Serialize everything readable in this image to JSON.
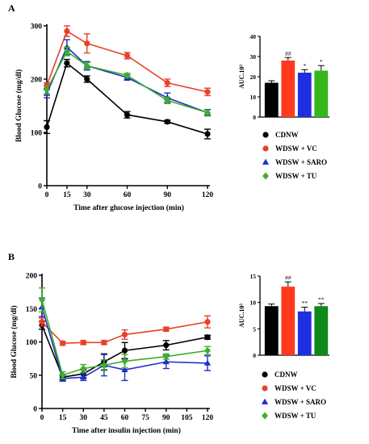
{
  "panels": [
    {
      "letter": "A"
    },
    {
      "letter": "B"
    }
  ],
  "legend": [
    {
      "label": "CDNW",
      "color": "#000000",
      "marker": "circle"
    },
    {
      "label": "WDSW + VC",
      "color": "#e8402a",
      "marker": "circle"
    },
    {
      "label": "WDSW + SARO",
      "color": "#1f2fc8",
      "marker": "triangle"
    },
    {
      "label": "WDSW + TU",
      "color": "#3fae2a",
      "marker": "diamond"
    }
  ],
  "chart_data": [
    {
      "id": "A-line",
      "type": "line",
      "xlabel": "Time after glucose injection (min)",
      "ylabel": "Blood Glucose (mg/dl)",
      "xlim": [
        0,
        120
      ],
      "ylim": [
        0,
        300
      ],
      "x_ticks": [
        "0",
        "15",
        "30",
        "60",
        "90",
        "120"
      ],
      "y_ticks": [
        "0",
        "100",
        "200",
        "300"
      ],
      "x": [
        0,
        15,
        30,
        60,
        90,
        120
      ],
      "series": [
        {
          "name": "CDNW",
          "color": "#000000",
          "marker": "circle",
          "values": [
            110,
            230,
            200,
            133,
            120,
            97
          ],
          "errors": [
            12,
            7,
            6,
            6,
            3,
            9
          ]
        },
        {
          "name": "WDSW + VC",
          "color": "#e8402a",
          "marker": "circle",
          "values": [
            188,
            290,
            267,
            244,
            193,
            176
          ],
          "errors": [
            5,
            10,
            18,
            6,
            7,
            7
          ]
        },
        {
          "name": "WDSW + SARO",
          "color": "#1f2fc8",
          "marker": "triangle",
          "values": [
            173,
            260,
            225,
            203,
            165,
            137
          ],
          "errors": [
            8,
            14,
            8,
            5,
            9,
            6
          ]
        },
        {
          "name": "WDSW + TU",
          "color": "#3fae2a",
          "marker": "diamond",
          "values": [
            180,
            252,
            225,
            207,
            160,
            137
          ],
          "errors": [
            8,
            8,
            6,
            4,
            6,
            5
          ]
        }
      ]
    },
    {
      "id": "A-bar",
      "type": "bar",
      "ylabel": "AUC.10³",
      "ylim": [
        0,
        40
      ],
      "y_ticks": [
        "0",
        "10",
        "20",
        "30",
        "40"
      ],
      "categories": [
        "CDNW",
        "WDSW + VC",
        "WDSW + SARO",
        "WDSW + TU"
      ],
      "values": [
        17,
        28,
        22,
        23
      ],
      "errors": [
        1,
        1.5,
        1.5,
        2.5
      ],
      "colors": [
        "#000000",
        "#ff3a1f",
        "#1f2fe0",
        "#35b71c"
      ],
      "significance": [
        "",
        "##",
        "*",
        "*"
      ]
    },
    {
      "id": "B-line",
      "type": "line",
      "xlabel": "Time after insulin injection (min)",
      "ylabel": "Blood Glucose (mg/dl)",
      "xlim": [
        0,
        120
      ],
      "ylim": [
        0,
        200
      ],
      "x_ticks": [
        "0",
        "15",
        "30",
        "45",
        "60",
        "75",
        "90",
        "105",
        "120"
      ],
      "y_ticks": [
        "0",
        "50",
        "100",
        "150",
        "200"
      ],
      "x": [
        0,
        15,
        30,
        45,
        60,
        90,
        120
      ],
      "series": [
        {
          "name": "CDNW",
          "color": "#000000",
          "marker": "circle",
          "values": [
            125,
            47,
            52,
            70,
            87,
            95,
            107
          ],
          "errors": [
            6,
            4,
            6,
            12,
            12,
            7,
            3
          ]
        },
        {
          "name": "WDSW + VC",
          "color": "#e8402a",
          "marker": "circle",
          "values": [
            130,
            98,
            99,
            99,
            111,
            119,
            130
          ],
          "errors": [
            6,
            3,
            3,
            3,
            7,
            3,
            9
          ]
        },
        {
          "name": "WDSW + SARO",
          "color": "#1f2fc8",
          "marker": "triangle",
          "values": [
            152,
            45,
            47,
            65,
            58,
            70,
            68
          ],
          "errors": [
            14,
            4,
            5,
            16,
            16,
            10,
            11
          ]
        },
        {
          "name": "WDSW + TU",
          "color": "#3fae2a",
          "marker": "diamond",
          "values": [
            163,
            50,
            60,
            65,
            71,
            78,
            87
          ],
          "errors": [
            18,
            5,
            6,
            8,
            10,
            4,
            6
          ]
        }
      ]
    },
    {
      "id": "B-bar",
      "type": "bar",
      "ylabel": "AUC.10³",
      "ylim": [
        0,
        15
      ],
      "y_ticks": [
        "0",
        "5",
        "10",
        "15"
      ],
      "categories": [
        "CDNW",
        "WDSW + VC",
        "WDSW + SARO",
        "WDSW + TU"
      ],
      "values": [
        9.3,
        13,
        8.3,
        9.3
      ],
      "errors": [
        0.4,
        0.9,
        0.8,
        0.5
      ],
      "colors": [
        "#000000",
        "#ff3a1f",
        "#1f2fe0",
        "#0f8a1a"
      ],
      "significance": [
        "",
        "##",
        "**",
        "**"
      ]
    }
  ]
}
